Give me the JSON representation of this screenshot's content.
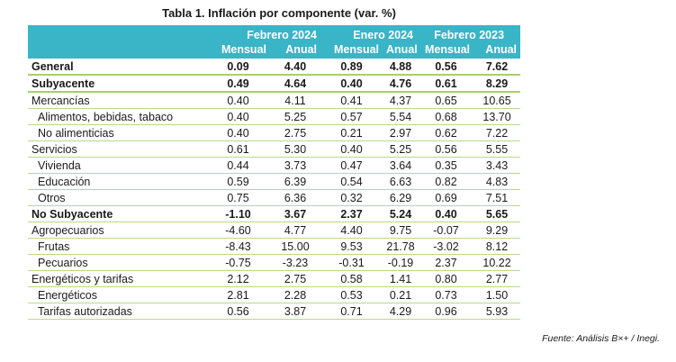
{
  "title": "Tabla 1. Inflación por componente (var. %)",
  "periods": [
    "Febrero 2024",
    "Enero 2024",
    "Febrero 2023"
  ],
  "subheaders": [
    "Mensual",
    "Anual",
    "Mensual",
    "Anual",
    "Mensual",
    "Anual"
  ],
  "rows": [
    {
      "label": "General",
      "values": [
        "0.09",
        "4.40",
        "0.89",
        "4.88",
        "0.56",
        "7.62"
      ]
    },
    {
      "label": "Subyacente",
      "values": [
        "0.49",
        "4.64",
        "0.40",
        "4.76",
        "0.61",
        "8.29"
      ]
    },
    {
      "label": "Mercancías",
      "values": [
        "0.40",
        "4.11",
        "0.41",
        "4.37",
        "0.65",
        "10.65"
      ]
    },
    {
      "label": "Alimentos, bebidas, tabaco",
      "values": [
        "0.40",
        "5.25",
        "0.57",
        "5.54",
        "0.68",
        "13.70"
      ]
    },
    {
      "label": "No alimenticias",
      "values": [
        "0.40",
        "2.75",
        "0.21",
        "2.97",
        "0.62",
        "7.22"
      ]
    },
    {
      "label": "Servicios",
      "values": [
        "0.61",
        "5.30",
        "0.40",
        "5.25",
        "0.56",
        "5.55"
      ]
    },
    {
      "label": "Vivienda",
      "values": [
        "0.44",
        "3.73",
        "0.47",
        "3.64",
        "0.35",
        "3.43"
      ]
    },
    {
      "label": "Educación",
      "values": [
        "0.59",
        "6.39",
        "0.54",
        "6.63",
        "0.82",
        "4.83"
      ]
    },
    {
      "label": "Otros",
      "values": [
        "0.75",
        "6.36",
        "0.32",
        "6.29",
        "0.69",
        "7.51"
      ]
    },
    {
      "label": "No Subyacente",
      "values": [
        "-1.10",
        "3.67",
        "2.37",
        "5.24",
        "0.40",
        "5.65"
      ]
    },
    {
      "label": "Agropecuarios",
      "values": [
        "-4.60",
        "4.77",
        "4.40",
        "9.75",
        "-0.07",
        "9.29"
      ]
    },
    {
      "label": "Frutas",
      "values": [
        "-8.43",
        "15.00",
        "9.53",
        "21.78",
        "-3.02",
        "8.12"
      ]
    },
    {
      "label": "Pecuarios",
      "values": [
        "-0.75",
        "-3.23",
        "-0.31",
        "-0.19",
        "2.37",
        "10.22"
      ]
    },
    {
      "label": "Energéticos y tarifas",
      "values": [
        "2.12",
        "2.75",
        "0.58",
        "1.41",
        "0.80",
        "2.77"
      ]
    },
    {
      "label": "Energéticos",
      "values": [
        "2.81",
        "2.28",
        "0.53",
        "0.21",
        "0.73",
        "1.50"
      ]
    },
    {
      "label": "Tarifas autorizadas",
      "values": [
        "0.56",
        "3.87",
        "0.71",
        "4.29",
        "0.96",
        "5.93"
      ]
    }
  ],
  "source": "Fuente: Análisis B×+ /  Inegi.",
  "colors": {
    "header_bg": "#3ab4c7",
    "header_text": "#ffffff",
    "row_rule": "#b9d98a"
  }
}
